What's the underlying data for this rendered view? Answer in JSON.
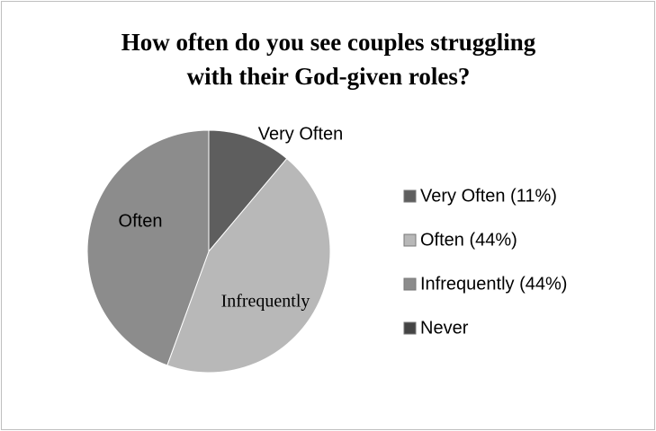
{
  "chart_data": {
    "type": "pie",
    "title": [
      "How often do you see couples struggling",
      "with their God-given roles?"
    ],
    "categories": [
      "Very Often",
      "Often",
      "Infrequently",
      "Never"
    ],
    "values": [
      11,
      44,
      44,
      null
    ],
    "colors": [
      "#5e5e5e",
      "#b8b8b8",
      "#8c8c8c",
      "#444444"
    ],
    "slice_labels": [
      "Very Often",
      "Infrequently",
      "Often",
      null
    ],
    "legend_labels": [
      "Very Often  (11%)",
      "Often  (44%)",
      "Infrequently  (44%)",
      "Never"
    ],
    "legend": "right"
  }
}
